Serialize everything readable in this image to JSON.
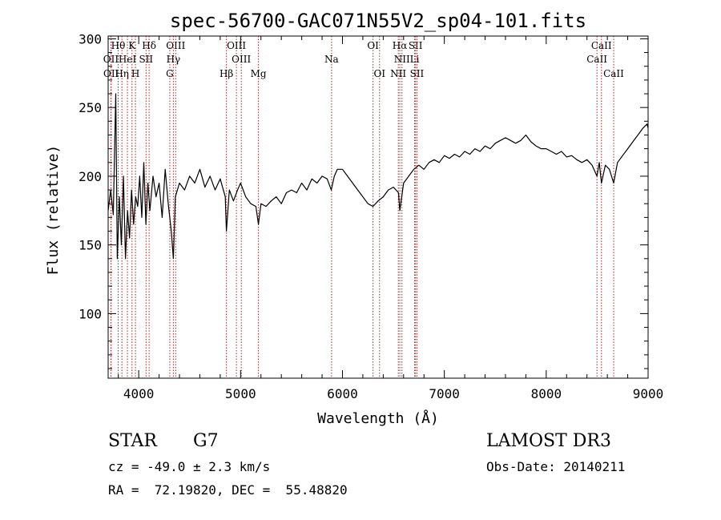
{
  "chart_data": {
    "type": "line",
    "title": "spec-56700-GAC071N55V2_sp04-101.fits",
    "xlabel": "Wavelength (Å)",
    "ylabel": "Flux (relative)",
    "xlim": [
      3700,
      9000
    ],
    "ylim": [
      53,
      302
    ],
    "xticks": [
      4000,
      5000,
      6000,
      7000,
      8000,
      9000
    ],
    "xtick_labels": [
      "4000",
      "5000",
      "6000",
      "7000",
      "8000",
      "9000"
    ],
    "yticks": [
      100,
      150,
      200,
      250,
      300
    ],
    "ytick_labels": [
      "100",
      "150",
      "200",
      "250",
      "300"
    ],
    "grid": false,
    "series": [
      {
        "name": "spectrum",
        "color": "#000000",
        "points": [
          [
            3700,
            175
          ],
          [
            3725,
            190
          ],
          [
            3750,
            172
          ],
          [
            3775,
            260
          ],
          [
            3790,
            140
          ],
          [
            3810,
            185
          ],
          [
            3830,
            150
          ],
          [
            3850,
            200
          ],
          [
            3870,
            140
          ],
          [
            3890,
            175
          ],
          [
            3910,
            155
          ],
          [
            3930,
            190
          ],
          [
            3950,
            165
          ],
          [
            3970,
            185
          ],
          [
            3990,
            178
          ],
          [
            4010,
            200
          ],
          [
            4030,
            170
          ],
          [
            4050,
            210
          ],
          [
            4070,
            165
          ],
          [
            4090,
            195
          ],
          [
            4110,
            175
          ],
          [
            4140,
            200
          ],
          [
            4170,
            185
          ],
          [
            4200,
            195
          ],
          [
            4230,
            170
          ],
          [
            4260,
            205
          ],
          [
            4290,
            180
          ],
          [
            4320,
            160
          ],
          [
            4340,
            140
          ],
          [
            4360,
            185
          ],
          [
            4400,
            195
          ],
          [
            4450,
            190
          ],
          [
            4500,
            200
          ],
          [
            4550,
            195
          ],
          [
            4600,
            205
          ],
          [
            4650,
            192
          ],
          [
            4700,
            200
          ],
          [
            4750,
            190
          ],
          [
            4800,
            198
          ],
          [
            4850,
            185
          ],
          [
            4861,
            160
          ],
          [
            4890,
            190
          ],
          [
            4930,
            182
          ],
          [
            4970,
            190
          ],
          [
            5000,
            195
          ],
          [
            5050,
            185
          ],
          [
            5100,
            180
          ],
          [
            5150,
            178
          ],
          [
            5175,
            165
          ],
          [
            5200,
            180
          ],
          [
            5250,
            178
          ],
          [
            5300,
            182
          ],
          [
            5350,
            185
          ],
          [
            5400,
            180
          ],
          [
            5450,
            188
          ],
          [
            5500,
            190
          ],
          [
            5550,
            188
          ],
          [
            5600,
            195
          ],
          [
            5650,
            190
          ],
          [
            5700,
            198
          ],
          [
            5750,
            195
          ],
          [
            5800,
            200
          ],
          [
            5850,
            198
          ],
          [
            5890,
            190
          ],
          [
            5920,
            200
          ],
          [
            5950,
            205
          ],
          [
            6000,
            205
          ],
          [
            6050,
            200
          ],
          [
            6100,
            195
          ],
          [
            6150,
            190
          ],
          [
            6200,
            185
          ],
          [
            6250,
            180
          ],
          [
            6300,
            178
          ],
          [
            6350,
            182
          ],
          [
            6400,
            185
          ],
          [
            6450,
            190
          ],
          [
            6500,
            192
          ],
          [
            6550,
            188
          ],
          [
            6563,
            175
          ],
          [
            6600,
            195
          ],
          [
            6650,
            200
          ],
          [
            6700,
            205
          ],
          [
            6750,
            208
          ],
          [
            6800,
            205
          ],
          [
            6850,
            210
          ],
          [
            6900,
            212
          ],
          [
            6950,
            210
          ],
          [
            7000,
            215
          ],
          [
            7050,
            213
          ],
          [
            7100,
            216
          ],
          [
            7150,
            214
          ],
          [
            7200,
            218
          ],
          [
            7250,
            216
          ],
          [
            7300,
            220
          ],
          [
            7350,
            218
          ],
          [
            7400,
            222
          ],
          [
            7450,
            220
          ],
          [
            7500,
            224
          ],
          [
            7550,
            226
          ],
          [
            7600,
            228
          ],
          [
            7650,
            226
          ],
          [
            7700,
            224
          ],
          [
            7750,
            226
          ],
          [
            7800,
            230
          ],
          [
            7850,
            225
          ],
          [
            7900,
            222
          ],
          [
            7950,
            220
          ],
          [
            8000,
            220
          ],
          [
            8050,
            218
          ],
          [
            8100,
            216
          ],
          [
            8150,
            218
          ],
          [
            8200,
            214
          ],
          [
            8250,
            215
          ],
          [
            8300,
            212
          ],
          [
            8350,
            210
          ],
          [
            8400,
            212
          ],
          [
            8450,
            208
          ],
          [
            8498,
            200
          ],
          [
            8520,
            210
          ],
          [
            8542,
            195
          ],
          [
            8580,
            208
          ],
          [
            8620,
            205
          ],
          [
            8662,
            195
          ],
          [
            8700,
            210
          ],
          [
            8750,
            215
          ],
          [
            8800,
            220
          ],
          [
            8850,
            225
          ],
          [
            8900,
            230
          ],
          [
            8950,
            235
          ],
          [
            8990,
            238
          ],
          [
            9000,
            235
          ]
        ]
      }
    ],
    "lines": [
      {
        "label": "Hθ",
        "x": 3798,
        "row": 0
      },
      {
        "label": "K",
        "x": 3934,
        "row": 0
      },
      {
        "label": "Hδ",
        "x": 4102,
        "row": 0
      },
      {
        "label": "OIII",
        "x": 4363,
        "row": 0
      },
      {
        "label": "OIII",
        "x": 4959,
        "row": 0
      },
      {
        "label": "OI",
        "x": 6300,
        "row": 0
      },
      {
        "label": "Hα",
        "x": 6563,
        "row": 0
      },
      {
        "label": "SII",
        "x": 6717,
        "row": 0
      },
      {
        "label": "CaII",
        "x": 8542,
        "row": 0
      },
      {
        "label": "OII",
        "x": 3727,
        "row": 1
      },
      {
        "label": "HeI",
        "x": 3889,
        "row": 1
      },
      {
        "label": "SII",
        "x": 4072,
        "row": 1
      },
      {
        "label": "Hγ",
        "x": 4340,
        "row": 1
      },
      {
        "label": "OIII",
        "x": 5007,
        "row": 1
      },
      {
        "label": "Na",
        "x": 5893,
        "row": 1
      },
      {
        "label": "NII",
        "x": 6584,
        "row": 1
      },
      {
        "label": "Li",
        "x": 6708,
        "row": 1
      },
      {
        "label": "CaII",
        "x": 8498,
        "row": 1
      },
      {
        "label": "OII",
        "x": 3729,
        "row": 2
      },
      {
        "label": "Hη",
        "x": 3835,
        "row": 2
      },
      {
        "label": "H",
        "x": 3968,
        "row": 2
      },
      {
        "label": "G",
        "x": 4305,
        "row": 2
      },
      {
        "label": "Hβ",
        "x": 4861,
        "row": 2
      },
      {
        "label": "Mg",
        "x": 5175,
        "row": 2
      },
      {
        "label": "OI",
        "x": 6364,
        "row": 2
      },
      {
        "label": "NII",
        "x": 6548,
        "row": 2
      },
      {
        "label": "SII",
        "x": 6731,
        "row": 2
      },
      {
        "label": "CaII",
        "x": 8662,
        "row": 2
      }
    ]
  },
  "footer": {
    "object_class": "STAR",
    "subclass": "G7",
    "survey": "LAMOST DR3",
    "redshift": "cz = -49.0 ± 2.3 km/s",
    "obs_date": "Obs-Date: 20140211",
    "coords": "RA =  72.19820, DEC =  55.48820"
  },
  "colors": {
    "spectrum": "#000000",
    "line_markers": "#b22222",
    "axes": "#000000",
    "background": "#ffffff"
  }
}
